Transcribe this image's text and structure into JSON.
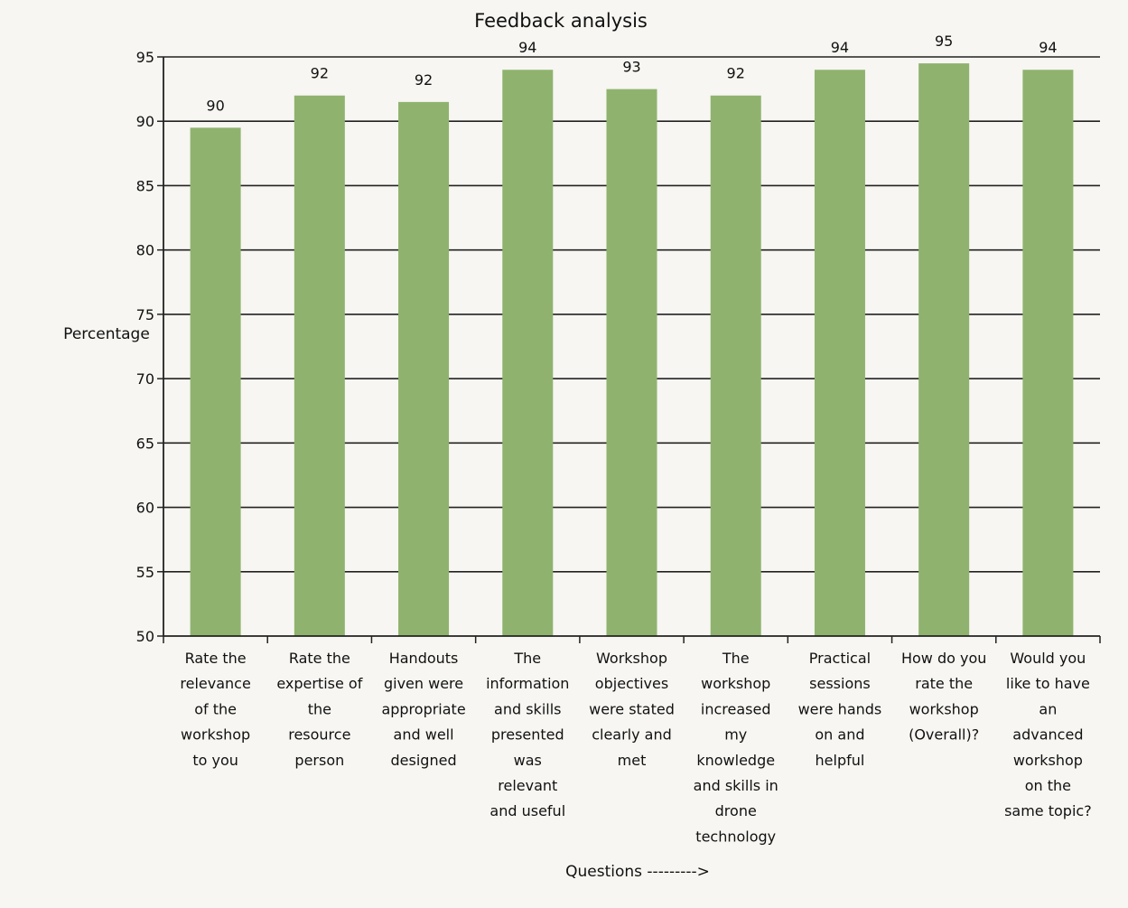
{
  "chart_data": {
    "type": "bar",
    "title": "Feedback analysis",
    "xlabel": "Questions --------->",
    "ylabel": "Percentage",
    "ylim": [
      50,
      95
    ],
    "yticks": [
      50,
      55,
      60,
      65,
      70,
      75,
      80,
      85,
      90,
      95
    ],
    "grid": true,
    "legend": "none",
    "bar_color": "#8fb36e",
    "categories": [
      [
        "Rate the",
        "relevance",
        "of the",
        "workshop",
        "to you"
      ],
      [
        "Rate the",
        "expertise of",
        "the",
        "resource",
        "person"
      ],
      [
        "Handouts",
        "given were",
        "appropriate",
        "and well",
        "designed"
      ],
      [
        "The",
        "information",
        "and skills",
        "presented",
        "was",
        "relevant",
        "and useful"
      ],
      [
        "Workshop",
        "objectives",
        "were stated",
        "clearly and",
        "met"
      ],
      [
        "The",
        "workshop",
        "increased",
        "my",
        "knowledge",
        "and skills in",
        "drone",
        "technology"
      ],
      [
        "Practical",
        "sessions",
        "were hands",
        "on and",
        "helpful"
      ],
      [
        "How do you",
        "rate the",
        "workshop",
        "(Overall)?"
      ],
      [
        "Would you",
        "like to have",
        "an",
        "advanced",
        "workshop",
        "on the",
        "same topic?"
      ]
    ],
    "values": [
      89.5,
      92,
      91.5,
      94,
      92.5,
      92,
      94,
      94.5,
      94
    ],
    "data_labels": [
      "90",
      "92",
      "92",
      "94",
      "93",
      "92",
      "94",
      "95",
      "94"
    ]
  }
}
